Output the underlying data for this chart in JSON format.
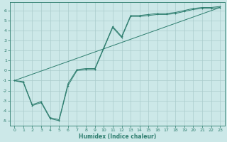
{
  "xlabel": "Humidex (Indice chaleur)",
  "xlim": [
    -0.5,
    23.5
  ],
  "ylim": [
    -5.5,
    6.8
  ],
  "yticks": [
    -5,
    -4,
    -3,
    -2,
    -1,
    0,
    1,
    2,
    3,
    4,
    5,
    6
  ],
  "xticks": [
    0,
    1,
    2,
    3,
    4,
    5,
    6,
    7,
    8,
    9,
    10,
    11,
    12,
    13,
    14,
    15,
    16,
    17,
    18,
    19,
    20,
    21,
    22,
    23
  ],
  "bg_color": "#cce8e8",
  "grid_color": "#aacccc",
  "line_color": "#2d7d6e",
  "line1_x": [
    0,
    1,
    2,
    3,
    4,
    5,
    6,
    7,
    8,
    9,
    10,
    11,
    12,
    13,
    14,
    15,
    16,
    17,
    18,
    19,
    20,
    21,
    22,
    23
  ],
  "line1_y": [
    -1.0,
    -1.2,
    -3.5,
    -3.2,
    -4.8,
    -5.0,
    -1.5,
    0.0,
    0.1,
    0.1,
    2.2,
    4.3,
    3.3,
    5.4,
    5.4,
    5.5,
    5.6,
    5.6,
    5.7,
    5.9,
    6.1,
    6.2,
    6.2,
    6.3
  ],
  "line2_x": [
    0,
    23
  ],
  "line2_y": [
    -1.0,
    6.3
  ],
  "line3_x": [
    0,
    1,
    2,
    3,
    4,
    5,
    6,
    7,
    8,
    9,
    10,
    11,
    12,
    13,
    14,
    15,
    16,
    17,
    18,
    19,
    20,
    21,
    22,
    23
  ],
  "line3_y": [
    -1.0,
    -1.1,
    -3.4,
    -3.1,
    -4.7,
    -4.9,
    -1.3,
    0.1,
    0.2,
    0.2,
    2.3,
    4.4,
    3.4,
    5.5,
    5.5,
    5.6,
    5.7,
    5.7,
    5.8,
    6.0,
    6.2,
    6.3,
    6.3,
    6.4
  ],
  "xlabel_fontsize": 5.5,
  "tick_fontsize": 4.5,
  "linewidth": 0.7,
  "markersize": 2.0
}
